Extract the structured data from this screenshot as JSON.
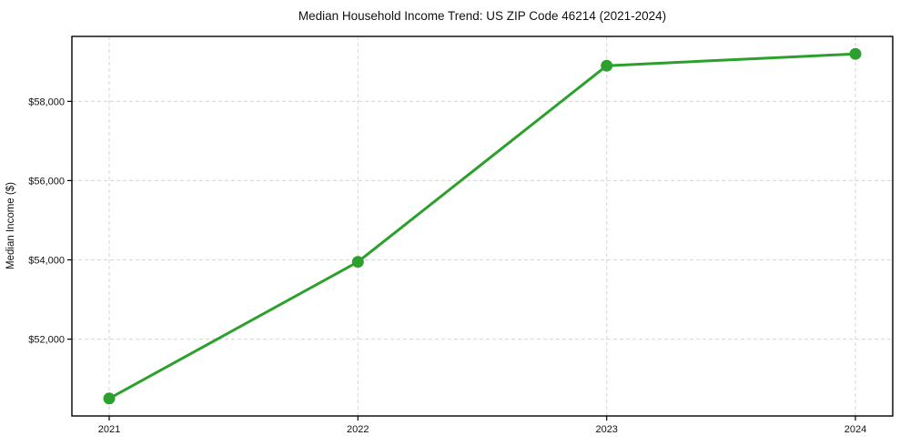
{
  "page": {
    "background_color": "#ffffff"
  },
  "chart_data": {
    "type": "line",
    "title": "Median Household Income Trend: US ZIP Code 46214 (2021-2024)",
    "xlabel": "",
    "ylabel": "Median Income ($)",
    "x": [
      2021,
      2022,
      2023,
      2024
    ],
    "xtick_labels": [
      "2021",
      "2022",
      "2023",
      "2024"
    ],
    "yticks": [
      52000,
      54000,
      56000,
      58000
    ],
    "ytick_labels": [
      "$52,000",
      "$54,000",
      "$56,000",
      "$58,000"
    ],
    "series": [
      {
        "name": "median-household-income",
        "values": [
          50500,
          53950,
          58900,
          59200
        ],
        "color": "#2ca02c",
        "marker": "circle",
        "marker_radius": 6.5,
        "line_width": 3
      }
    ],
    "xlim": [
      2020.85,
      2024.15
    ],
    "ylim": [
      50060,
      59640
    ],
    "grid": true,
    "grid_style": "dashed",
    "grid_axes": "both",
    "grid_color": "#d5d5d5",
    "axis_color": "#000000",
    "legend": "none"
  }
}
